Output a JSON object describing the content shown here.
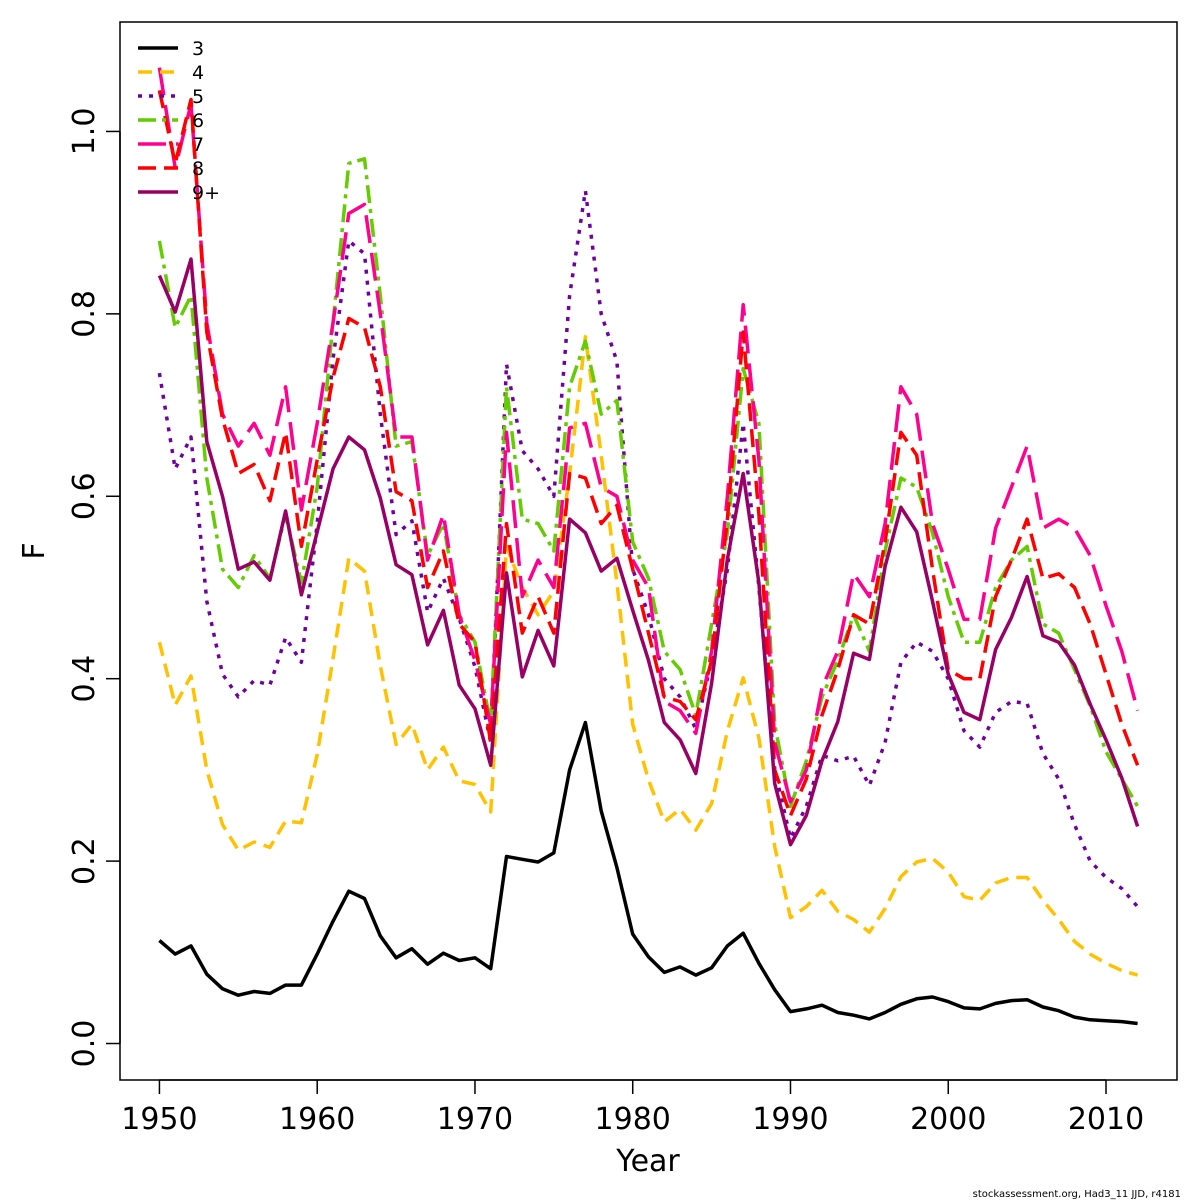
{
  "chart_data": {
    "type": "line",
    "title": "",
    "xlabel": "Year",
    "ylabel": "F",
    "xlim": [
      1947.5,
      2014.5
    ],
    "ylim": [
      -0.04,
      1.12
    ],
    "x_ticks": [
      1950,
      1960,
      1970,
      1980,
      1990,
      2000,
      2010
    ],
    "y_ticks": [
      0.0,
      0.2,
      0.4,
      0.6,
      0.8,
      1.0
    ],
    "y_tick_labels": [
      "0.0",
      "0.2",
      "0.4",
      "0.6",
      "0.8",
      "1.0"
    ],
    "grid": false,
    "legend_position": "top-left",
    "x": [
      1950,
      1951,
      1952,
      1953,
      1954,
      1955,
      1956,
      1957,
      1958,
      1959,
      1960,
      1961,
      1962,
      1963,
      1964,
      1965,
      1966,
      1967,
      1968,
      1969,
      1970,
      1971,
      1972,
      1973,
      1974,
      1975,
      1976,
      1977,
      1978,
      1979,
      1980,
      1981,
      1982,
      1983,
      1984,
      1985,
      1986,
      1987,
      1988,
      1989,
      1990,
      1991,
      1992,
      1993,
      1994,
      1995,
      1996,
      1997,
      1998,
      1999,
      2000,
      2001,
      2002,
      2003,
      2004,
      2005,
      2006,
      2007,
      2008,
      2009,
      2010,
      2011,
      2012
    ],
    "series": [
      {
        "name": "3",
        "color": "#000000",
        "dash": "",
        "width": 3.5,
        "values": [
          0.113,
          0.098,
          0.107,
          0.076,
          0.06,
          0.053,
          0.057,
          0.055,
          0.064,
          0.064,
          0.098,
          0.134,
          0.167,
          0.159,
          0.118,
          0.094,
          0.104,
          0.087,
          0.099,
          0.091,
          0.094,
          0.082,
          0.205,
          0.202,
          0.199,
          0.209,
          0.3,
          0.352,
          0.255,
          0.193,
          0.12,
          0.095,
          0.078,
          0.084,
          0.075,
          0.083,
          0.107,
          0.121,
          0.088,
          0.059,
          0.035,
          0.038,
          0.042,
          0.034,
          0.031,
          0.027,
          0.034,
          0.043,
          0.049,
          0.051,
          0.046,
          0.039,
          0.038,
          0.044,
          0.047,
          0.048,
          0.04,
          0.036,
          0.029,
          0.026,
          0.025,
          0.024,
          0.022
        ]
      },
      {
        "name": "4",
        "color": "#FFC100",
        "dash": "14,8",
        "width": 3.5,
        "values": [
          0.44,
          0.371,
          0.403,
          0.3,
          0.24,
          0.212,
          0.221,
          0.215,
          0.244,
          0.242,
          0.317,
          0.422,
          0.532,
          0.518,
          0.414,
          0.328,
          0.35,
          0.3,
          0.325,
          0.288,
          0.284,
          0.254,
          0.545,
          0.5,
          0.47,
          0.496,
          0.624,
          0.775,
          0.645,
          0.505,
          0.35,
          0.289,
          0.243,
          0.257,
          0.234,
          0.263,
          0.343,
          0.401,
          0.335,
          0.216,
          0.138,
          0.15,
          0.168,
          0.145,
          0.136,
          0.122,
          0.148,
          0.183,
          0.199,
          0.203,
          0.188,
          0.161,
          0.157,
          0.176,
          0.182,
          0.182,
          0.157,
          0.136,
          0.112,
          0.098,
          0.088,
          0.08,
          0.075
        ]
      },
      {
        "name": "5",
        "color": "#7000A0",
        "dash": "4,7",
        "width": 3.5,
        "values": [
          0.735,
          0.63,
          0.665,
          0.485,
          0.405,
          0.38,
          0.398,
          0.393,
          0.445,
          0.418,
          0.57,
          0.75,
          0.88,
          0.866,
          0.69,
          0.558,
          0.573,
          0.473,
          0.51,
          0.466,
          0.413,
          0.33,
          0.745,
          0.65,
          0.63,
          0.6,
          0.82,
          0.935,
          0.8,
          0.748,
          0.52,
          0.47,
          0.4,
          0.38,
          0.345,
          0.42,
          0.52,
          0.68,
          0.5,
          0.3,
          0.225,
          0.26,
          0.316,
          0.31,
          0.315,
          0.283,
          0.33,
          0.418,
          0.44,
          0.43,
          0.4,
          0.343,
          0.325,
          0.363,
          0.375,
          0.373,
          0.318,
          0.29,
          0.24,
          0.2,
          0.182,
          0.17,
          0.15
        ]
      },
      {
        "name": "6",
        "color": "#64CC00",
        "dash": "18,6,4,6",
        "width": 3.5,
        "values": [
          0.88,
          0.785,
          0.82,
          0.62,
          0.52,
          0.5,
          0.535,
          0.51,
          0.58,
          0.505,
          0.61,
          0.79,
          0.965,
          0.97,
          0.82,
          0.655,
          0.66,
          0.535,
          0.57,
          0.47,
          0.44,
          0.35,
          0.72,
          0.575,
          0.57,
          0.54,
          0.72,
          0.77,
          0.69,
          0.705,
          0.55,
          0.51,
          0.43,
          0.41,
          0.36,
          0.46,
          0.56,
          0.74,
          0.68,
          0.35,
          0.26,
          0.31,
          0.38,
          0.42,
          0.47,
          0.43,
          0.54,
          0.62,
          0.61,
          0.56,
          0.49,
          0.44,
          0.44,
          0.5,
          0.53,
          0.545,
          0.46,
          0.45,
          0.41,
          0.37,
          0.32,
          0.29,
          0.26
        ]
      },
      {
        "name": "7",
        "color": "#FF0090",
        "dash": "28,10",
        "width": 3.5,
        "values": [
          1.07,
          0.96,
          1.03,
          0.79,
          0.69,
          0.655,
          0.68,
          0.645,
          0.72,
          0.585,
          0.68,
          0.79,
          0.91,
          0.92,
          0.8,
          0.665,
          0.665,
          0.53,
          0.58,
          0.47,
          0.42,
          0.35,
          0.67,
          0.49,
          0.53,
          0.5,
          0.675,
          0.68,
          0.61,
          0.6,
          0.53,
          0.5,
          0.375,
          0.365,
          0.34,
          0.43,
          0.6,
          0.81,
          0.64,
          0.33,
          0.265,
          0.3,
          0.39,
          0.43,
          0.515,
          0.49,
          0.57,
          0.72,
          0.69,
          0.57,
          0.52,
          0.465,
          0.465,
          0.565,
          0.61,
          0.655,
          0.565,
          0.575,
          0.565,
          0.535,
          0.48,
          0.43,
          0.365
        ]
      },
      {
        "name": "8",
        "color": "#FF0000",
        "dash": "18,8",
        "width": 3.5,
        "values": [
          1.045,
          0.965,
          1.035,
          0.78,
          0.685,
          0.625,
          0.635,
          0.595,
          0.67,
          0.545,
          0.64,
          0.73,
          0.795,
          0.785,
          0.72,
          0.605,
          0.595,
          0.5,
          0.54,
          0.46,
          0.44,
          0.33,
          0.57,
          0.45,
          0.49,
          0.45,
          0.625,
          0.62,
          0.57,
          0.59,
          0.52,
          0.45,
          0.38,
          0.375,
          0.355,
          0.42,
          0.575,
          0.78,
          0.58,
          0.3,
          0.25,
          0.29,
          0.36,
          0.41,
          0.47,
          0.46,
          0.55,
          0.67,
          0.645,
          0.52,
          0.41,
          0.4,
          0.4,
          0.49,
          0.53,
          0.575,
          0.51,
          0.515,
          0.5,
          0.46,
          0.405,
          0.35,
          0.305
        ]
      },
      {
        "name": "9+",
        "color": "#990066",
        "dash": "",
        "width": 3.5,
        "values": [
          0.842,
          0.802,
          0.86,
          0.66,
          0.6,
          0.52,
          0.528,
          0.508,
          0.584,
          0.492,
          0.561,
          0.63,
          0.665,
          0.651,
          0.598,
          0.525,
          0.514,
          0.437,
          0.475,
          0.393,
          0.367,
          0.305,
          0.516,
          0.402,
          0.453,
          0.414,
          0.575,
          0.56,
          0.518,
          0.532,
          0.475,
          0.42,
          0.352,
          0.333,
          0.296,
          0.395,
          0.531,
          0.625,
          0.505,
          0.285,
          0.218,
          0.25,
          0.31,
          0.353,
          0.428,
          0.421,
          0.523,
          0.588,
          0.561,
          0.485,
          0.405,
          0.363,
          0.355,
          0.432,
          0.467,
          0.512,
          0.447,
          0.44,
          0.415,
          0.372,
          0.333,
          0.291,
          0.238
        ]
      }
    ],
    "credit": "stockassessment.org, Had3_11 JJD, r4181"
  }
}
